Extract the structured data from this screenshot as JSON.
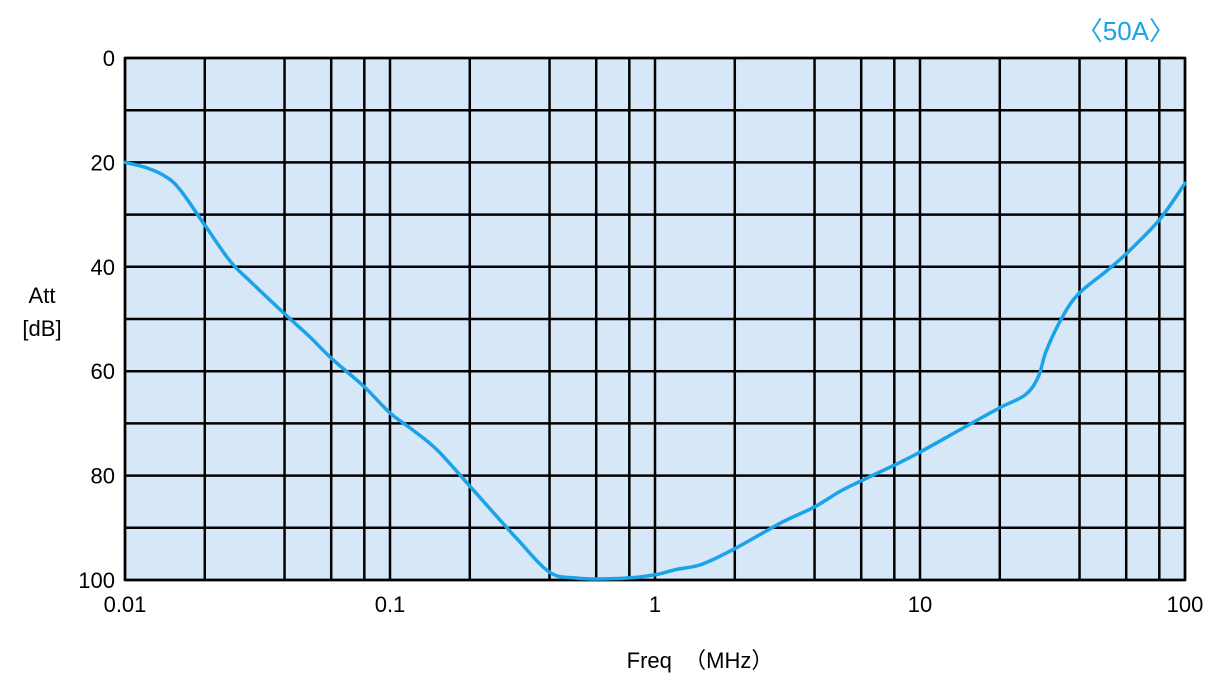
{
  "chart_data": {
    "type": "line",
    "badge": "〈50A〉",
    "ylabel_line1": "Att",
    "ylabel_line2": "[dB]",
    "xlabel": "Freq  （MHz）",
    "x_scale": "log",
    "xlim": [
      0.01,
      100
    ],
    "ylim": [
      0,
      100
    ],
    "y_inverted": true,
    "grid": true,
    "x_tick_labels": [
      "0.01",
      "0.1",
      "1",
      "10",
      "100"
    ],
    "y_tick_labels": [
      "0",
      "20",
      "40",
      "60",
      "80",
      "100"
    ],
    "series": [
      {
        "x": [
          0.01,
          0.012,
          0.014,
          0.016,
          0.02,
          0.025,
          0.03,
          0.04,
          0.05,
          0.06,
          0.08,
          0.1,
          0.12,
          0.15,
          0.2,
          0.3,
          0.4,
          0.5,
          0.6,
          0.8,
          1,
          1.2,
          1.5,
          2,
          3,
          4,
          5,
          6,
          8,
          10,
          15,
          20,
          25,
          28,
          30,
          35,
          40,
          50,
          60,
          80,
          100
        ],
        "y": [
          20,
          21,
          22.5,
          25,
          32,
          39,
          43,
          49,
          53.5,
          57.5,
          63,
          68,
          71,
          75,
          82,
          92,
          98.5,
          99.6,
          99.8,
          99.6,
          99,
          98,
          97,
          94,
          89,
          86,
          83,
          81,
          78,
          75.5,
          70.5,
          67,
          64.5,
          61,
          56,
          49,
          45,
          41,
          37.5,
          31,
          24
        ]
      }
    ],
    "colors": {
      "line": "#1AA3E8",
      "plot_bg": "#D6E7F7",
      "grid": "#000000",
      "badge": "#1AA3E8"
    }
  }
}
